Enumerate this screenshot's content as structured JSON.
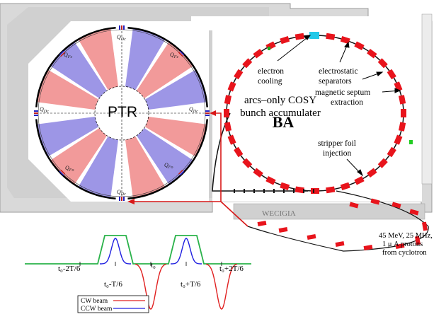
{
  "ptr": {
    "title": "PTR",
    "quad_dc": "Q",
    "quad_dc_sub": "Dc",
    "quad_fc_sub": "Fc",
    "quad_fo_sub": "Fo",
    "colors": {
      "red": "#f29a9a",
      "blue": "#9d96e6",
      "floor": "#d6d6d6"
    }
  },
  "ba": {
    "title": "BA",
    "caption_line1": "arcs–only COSY",
    "caption_line2": "bunch accumulater",
    "electron_cooling_1": "electron",
    "electron_cooling_2": "cooling",
    "separators_1": "electrostatic",
    "separators_2": "separators",
    "septum_1": "magnetic septum",
    "septum_2": "extraction",
    "stripper_1": "stripper foil",
    "stripper_2": "injection",
    "source_1": "45 MeV, 25 MHz,",
    "source_2": "1 μ A  protons",
    "source_3": "from cyclotron",
    "magnet_color": "#e8141c",
    "cooler_color": "#22c8e8",
    "floor_sign": "WECIGIA"
  },
  "timing": {
    "t1": "t₀-2T/6",
    "t2": "t₀-T/6",
    "t3": "t₀",
    "t4": "t₀+T/6",
    "t5": "t₀+2T/6",
    "legend_cw": "CW beam",
    "legend_ccw": "CCW beam",
    "green": "#2ab24a",
    "blue": "#2020e0",
    "red": "#e02020"
  }
}
